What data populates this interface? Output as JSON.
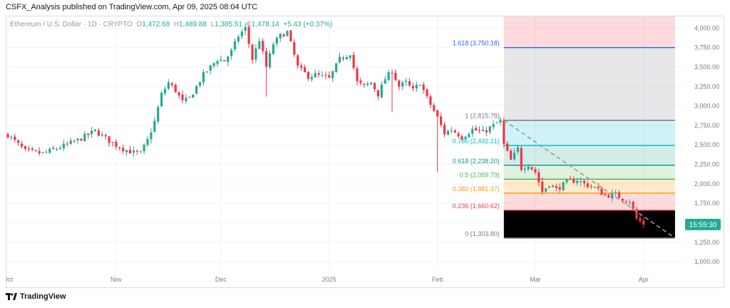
{
  "header": {
    "text": "CSFX_Analysis published on TradingView.com, Apr 09, 2025 08:04 UTC"
  },
  "legend": {
    "symbol": "Ethereum / U.S. Dollar · 1D · CRYPTO",
    "open_label": "O",
    "open": "1,472.68",
    "high_label": "H",
    "high": "1,489.88",
    "low_label": "L",
    "low": "1,385.51",
    "close_label": "C",
    "close": "1,478.14",
    "change": "+5.43 (+0.37%)"
  },
  "countdown": "15:55:30",
  "footer": {
    "brand": "TradingView"
  },
  "colors": {
    "up": "#22ab94",
    "down": "#f23645",
    "grid": "#f0f3fa",
    "axis_text": "#787b86"
  },
  "chart_data": {
    "type": "candlestick",
    "title": "Ethereum / U.S. Dollar · 1D · CRYPTO",
    "y_axis": {
      "ticks": [
        "1,000.00",
        "1,250.00",
        "1,500.00",
        "1,750.00",
        "2,000.00",
        "2,250.00",
        "2,500.00",
        "2,750.00",
        "3,000.00",
        "3,250.00",
        "3,500.00",
        "3,750.00",
        "4,000.00"
      ],
      "tick_values": [
        1000,
        1250,
        1500,
        1750,
        2000,
        2250,
        2500,
        2750,
        3000,
        3250,
        3500,
        3750,
        4000
      ],
      "range": [
        900,
        4150
      ]
    },
    "x_axis": {
      "labels": [
        "Oct",
        "Nov",
        "Dec",
        "2025",
        "Feb",
        "Mar",
        "Apr"
      ],
      "label_index": [
        0,
        31,
        61,
        92,
        123,
        151,
        182
      ],
      "num_days": 194
    },
    "close_path": [
      [
        0,
        2630
      ],
      [
        5,
        2420
      ],
      [
        10,
        2390
      ],
      [
        15,
        2470
      ],
      [
        20,
        2560
      ],
      [
        25,
        2680
      ],
      [
        30,
        2520
      ],
      [
        33,
        2450
      ],
      [
        36,
        2400
      ],
      [
        38,
        2390
      ],
      [
        40,
        2560
      ],
      [
        42,
        2800
      ],
      [
        44,
        3150
      ],
      [
        46,
        3300
      ],
      [
        48,
        3200
      ],
      [
        50,
        3050
      ],
      [
        52,
        3100
      ],
      [
        56,
        3400
      ],
      [
        60,
        3600
      ],
      [
        62,
        3580
      ],
      [
        64,
        3700
      ],
      [
        66,
        3900
      ],
      [
        68,
        4000
      ],
      [
        70,
        3600
      ],
      [
        72,
        3850
      ],
      [
        74,
        3500
      ],
      [
        76,
        3800
      ],
      [
        78,
        3900
      ],
      [
        80,
        3950
      ],
      [
        83,
        3500
      ],
      [
        86,
        3380
      ],
      [
        88,
        3400
      ],
      [
        92,
        3350
      ],
      [
        95,
        3600
      ],
      [
        98,
        3680
      ],
      [
        100,
        3300
      ],
      [
        102,
        3250
      ],
      [
        104,
        3300
      ],
      [
        106,
        3150
      ],
      [
        108,
        3350
      ],
      [
        110,
        3450
      ],
      [
        112,
        3250
      ],
      [
        114,
        3300
      ],
      [
        116,
        3200
      ],
      [
        118,
        3300
      ],
      [
        120,
        3100
      ],
      [
        123,
        2850
      ],
      [
        125,
        2650
      ],
      [
        127,
        2700
      ],
      [
        130,
        2600
      ],
      [
        133,
        2700
      ],
      [
        136,
        2660
      ],
      [
        139,
        2750
      ],
      [
        141,
        2810
      ],
      [
        142,
        2500
      ],
      [
        144,
        2300
      ],
      [
        146,
        2450
      ],
      [
        147,
        2200
      ],
      [
        149,
        2250
      ],
      [
        151,
        2150
      ],
      [
        153,
        1900
      ],
      [
        155,
        2000
      ],
      [
        157,
        1930
      ],
      [
        160,
        2020
      ],
      [
        163,
        2050
      ],
      [
        165,
        2000
      ],
      [
        168,
        1950
      ],
      [
        171,
        1850
      ],
      [
        174,
        1860
      ],
      [
        176,
        1810
      ],
      [
        178,
        1780
      ],
      [
        180,
        1550
      ],
      [
        182,
        1480
      ]
    ],
    "special_wicks": [
      {
        "day": 74,
        "low": 3120
      },
      {
        "day": 110,
        "low": 2920
      },
      {
        "day": 123,
        "low": 2150
      }
    ],
    "fibonacci": {
      "from_day": 142,
      "to_day": 191,
      "high_day": 142,
      "high_value": 2815.78,
      "low_day": 182,
      "low_value": 1303.8,
      "levels": [
        {
          "ratio": "1.618",
          "value": 3750.18,
          "label": "1.618 (3,750.18)",
          "color": "#2962ff",
          "fill": "rgba(41,98,255,0.18)"
        },
        {
          "ratio": "1",
          "value": 2815.78,
          "label": "1 (2,815.78)",
          "color": "#787b86",
          "fill": "rgba(120,123,134,0.18)"
        },
        {
          "ratio": "0.786",
          "value": 2492.21,
          "label": "0.786 (2,492.21)",
          "color": "#00bcd4",
          "fill": "rgba(0,188,212,0.18)"
        },
        {
          "ratio": "0.618",
          "value": 2238.2,
          "label": "0.618 (2,238.20)",
          "color": "#089981",
          "fill": "rgba(8,153,129,0.18)"
        },
        {
          "ratio": "0.5",
          "value": 2059.79,
          "label": "0.5 (2,059.79)",
          "color": "#4caf50",
          "fill": "rgba(76,175,80,0.18)"
        },
        {
          "ratio": "0.382",
          "value": 1881.37,
          "label": "0.382 (1,881.37)",
          "color": "#ff9800",
          "fill": "rgba(255,152,0,0.20)"
        },
        {
          "ratio": "0.236",
          "value": 1660.62,
          "label": "0.236 (1,660.62)",
          "color": "#f23645",
          "fill": "rgba(242,54,69,0.18)"
        },
        {
          "ratio": "0",
          "value": 1303.8,
          "label": "0 (1,303.80)",
          "color": "#787b86",
          "fill": ""
        }
      ],
      "top_fill_color": "rgba(242,54,69,0.18)"
    },
    "last_price": 1478.14
  }
}
